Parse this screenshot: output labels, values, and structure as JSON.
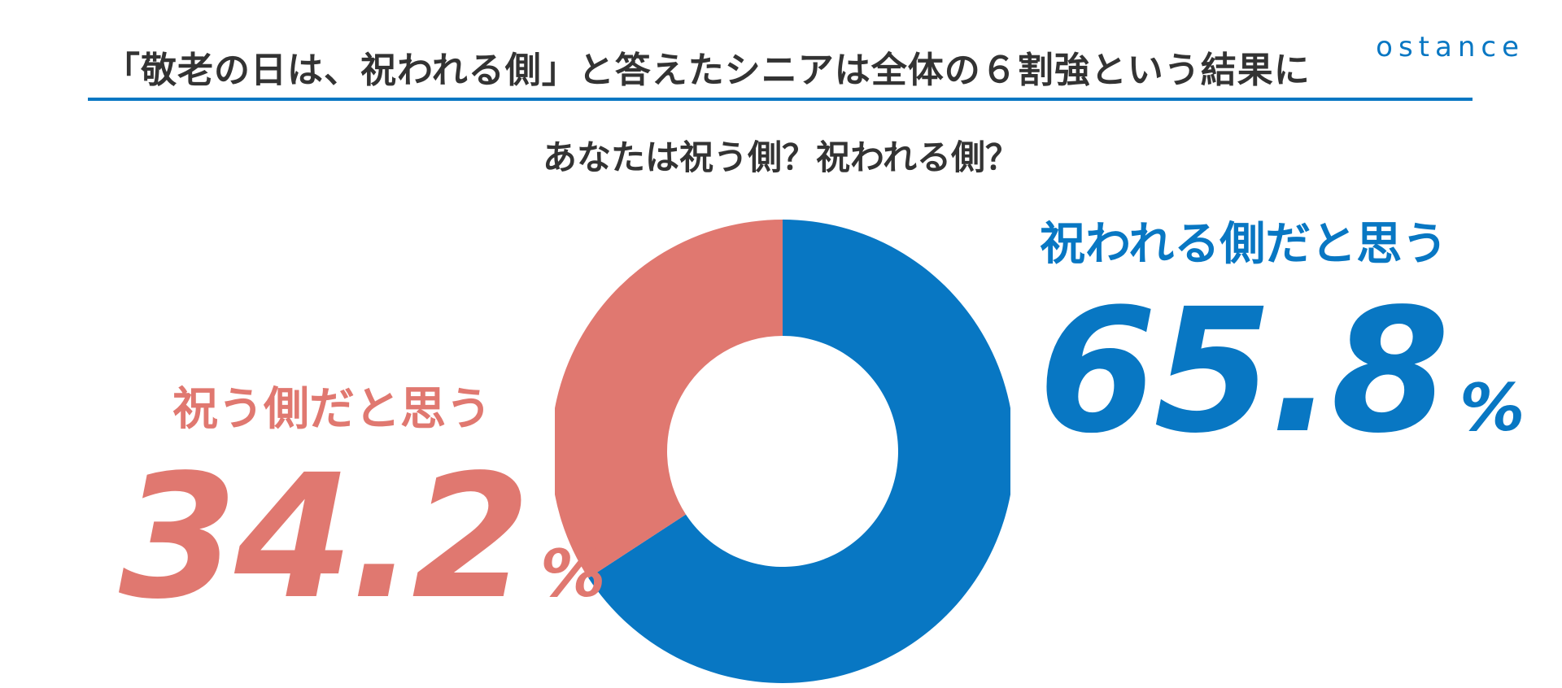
{
  "headline": "「敬老の日は、祝われる側」と答えたシニアは全体の６割強という結果に",
  "logo": "ostance",
  "colors": {
    "accent_blue": "#0877c3",
    "accent_pink": "#e07870",
    "text_dark": "#333333"
  },
  "chart_data": {
    "type": "pie",
    "title": "あなたは祝う側？祝われる側？",
    "donut": true,
    "start": "top",
    "direction": "clockwise",
    "series": [
      {
        "name": "祝われる側だと思う",
        "value": 65.8,
        "value_label": "65.8",
        "unit": "%",
        "color": "#0877c3"
      },
      {
        "name": "祝う側だと思う",
        "value": 34.2,
        "value_label": "34.2",
        "unit": "%",
        "color": "#e07870"
      }
    ]
  }
}
